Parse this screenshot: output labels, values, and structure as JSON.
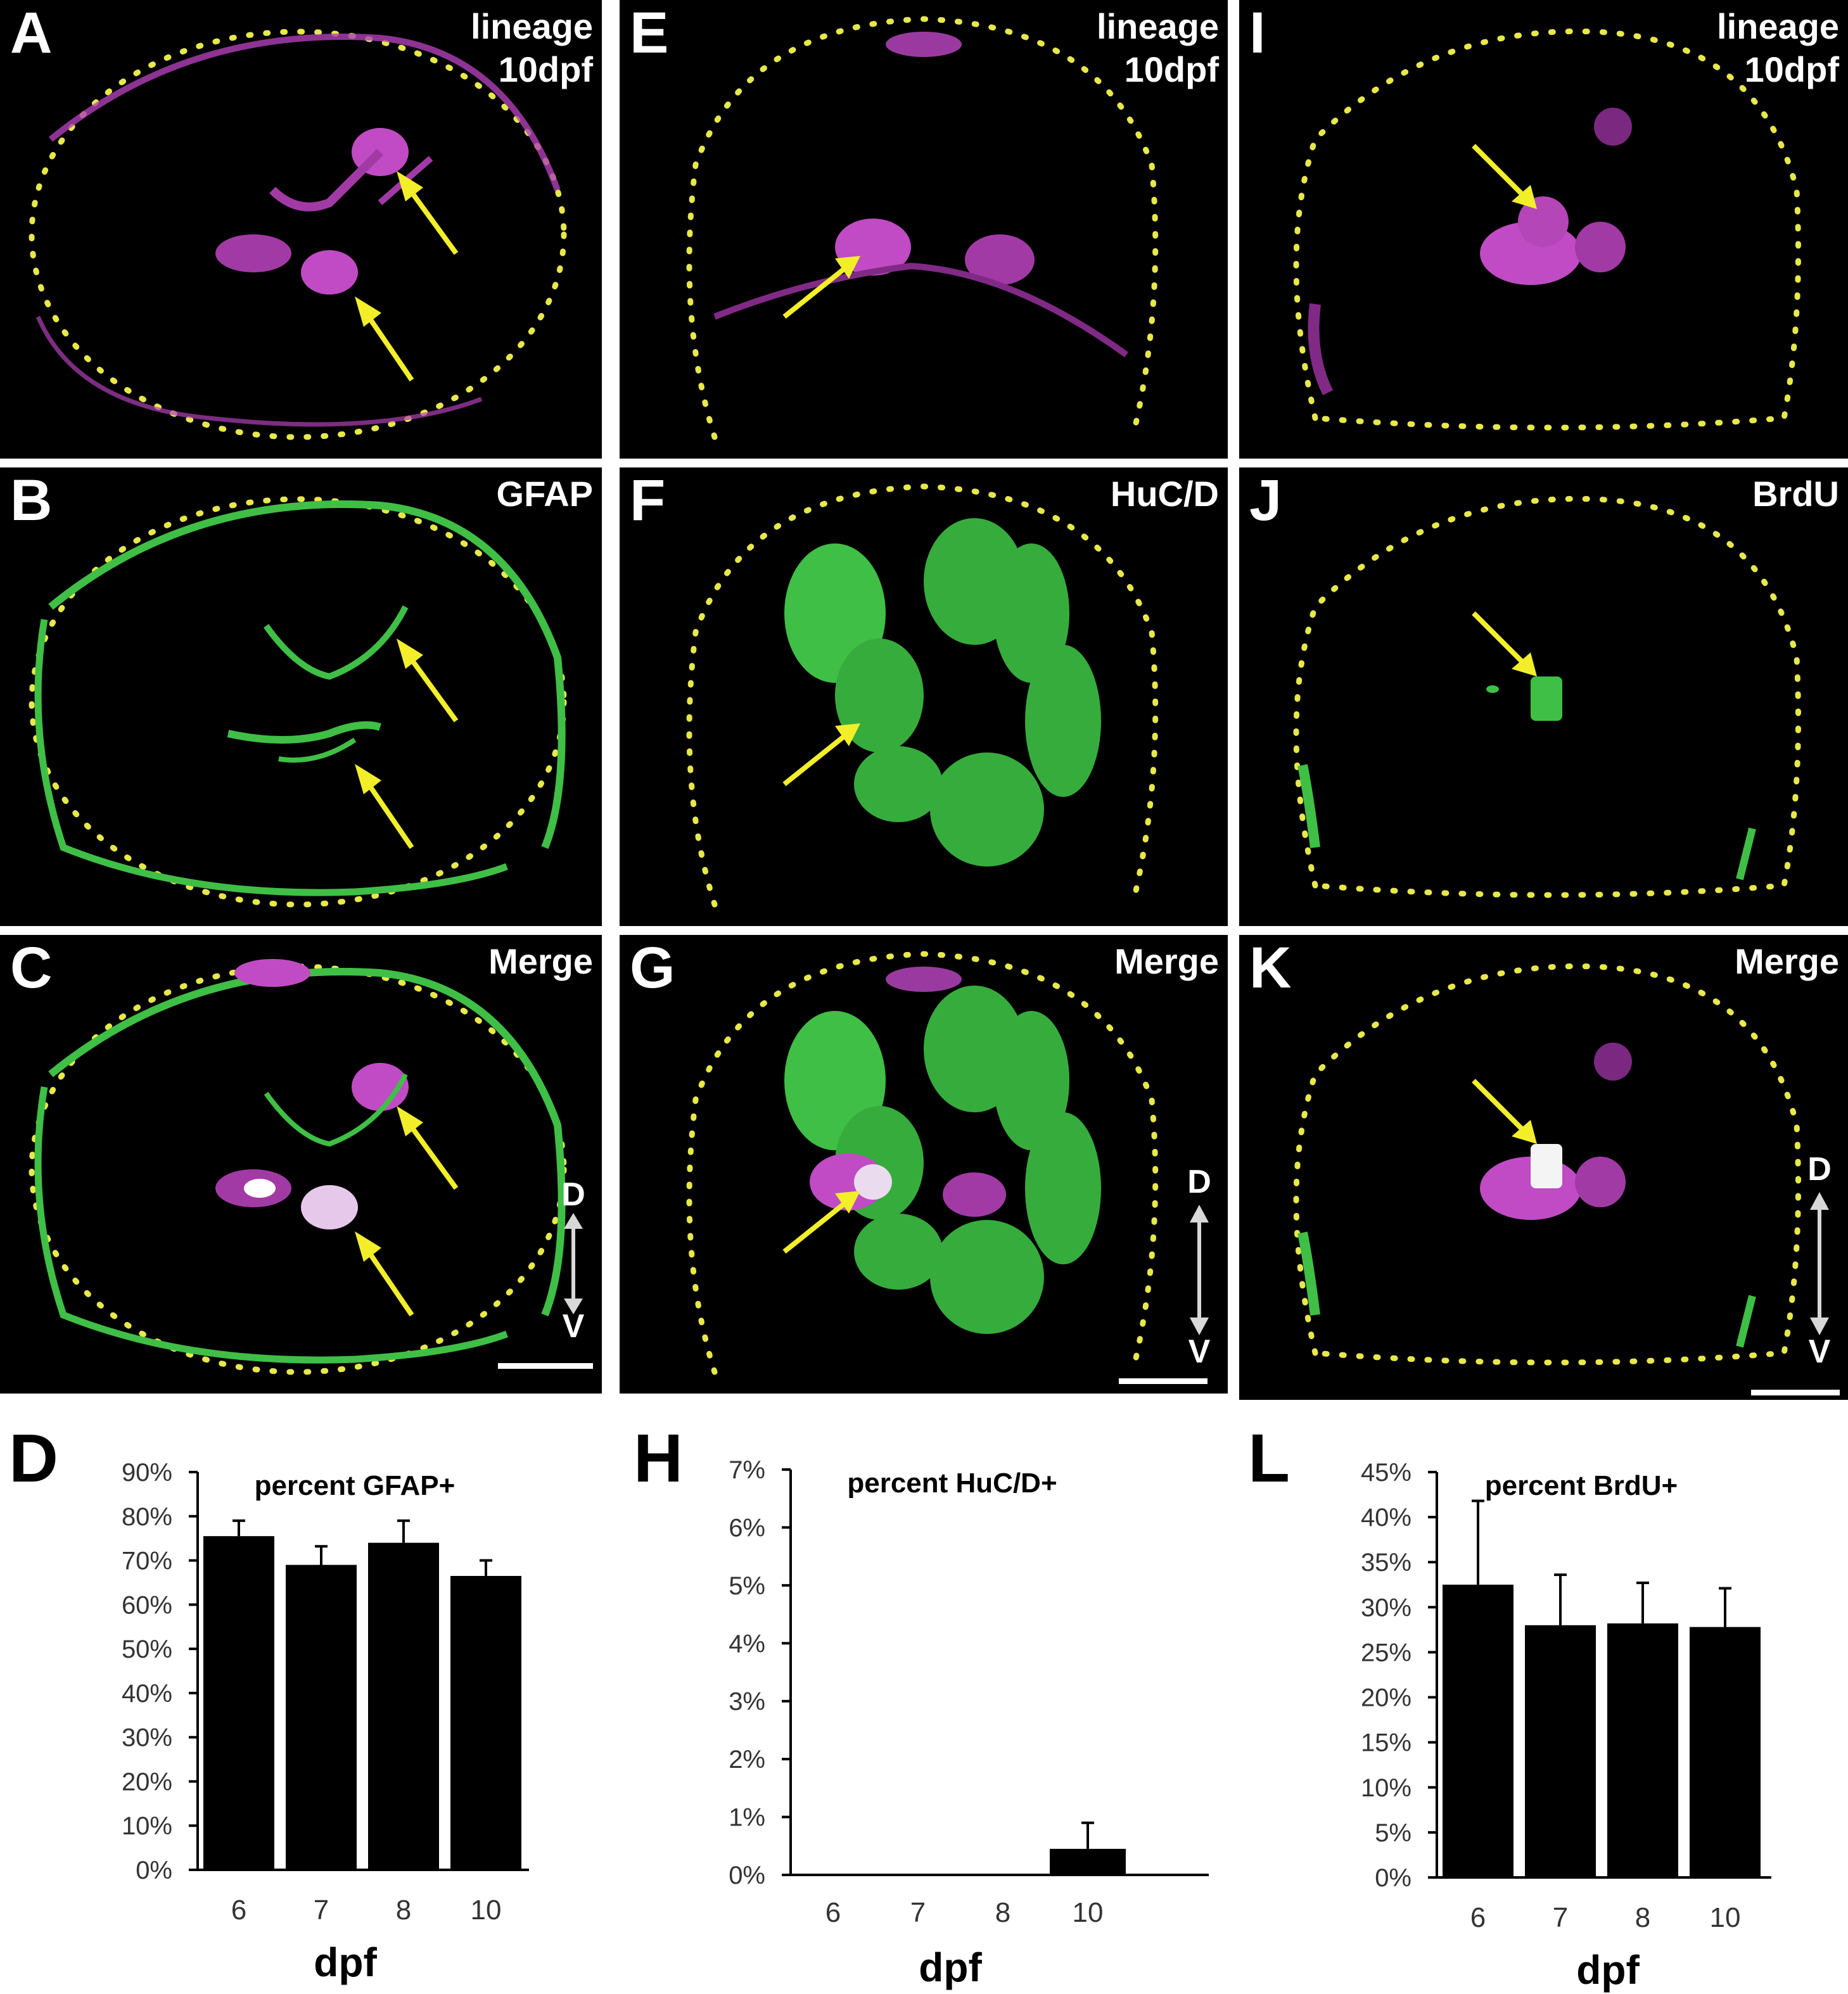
{
  "panels": [
    {
      "id": "A",
      "tag_line1": "lineage",
      "tag_line2": "10dpf",
      "stain": "magenta"
    },
    {
      "id": "B",
      "tag_line1": "GFAP",
      "tag_line2": "",
      "stain": "green"
    },
    {
      "id": "C",
      "tag_line1": "Merge",
      "tag_line2": "",
      "stain": "merge"
    },
    {
      "id": "E",
      "tag_line1": "lineage",
      "tag_line2": "10dpf",
      "stain": "magenta"
    },
    {
      "id": "F",
      "tag_line1": "HuC/D",
      "tag_line2": "",
      "stain": "green"
    },
    {
      "id": "G",
      "tag_line1": "Merge",
      "tag_line2": "",
      "stain": "merge"
    },
    {
      "id": "I",
      "tag_line1": "lineage",
      "tag_line2": "10dpf",
      "stain": "magenta"
    },
    {
      "id": "J",
      "tag_line1": "BrdU",
      "tag_line2": "",
      "stain": "green"
    },
    {
      "id": "K",
      "tag_line1": "Merge",
      "tag_line2": "",
      "stain": "merge"
    }
  ],
  "orientation": {
    "dorsal": "D",
    "ventral": "V"
  },
  "colors": {
    "magenta": "#c04bc4",
    "green": "#3fbf45",
    "outline": "#e8e84a",
    "arrow": "#f2ef2a",
    "white": "#ffffff"
  },
  "chart_data": [
    {
      "panel": "D",
      "type": "bar",
      "title": "percent GFAP+",
      "xlabel": "dpf",
      "ylabel": "",
      "categories": [
        "6",
        "7",
        "8",
        "10"
      ],
      "values": [
        75.5,
        69,
        74,
        66.5
      ],
      "error": [
        3.5,
        4.2,
        5,
        3.5
      ],
      "ylim": [
        0,
        90
      ],
      "yticks": [
        "0%",
        "10%",
        "20%",
        "30%",
        "40%",
        "50%",
        "60%",
        "70%",
        "80%",
        "90%"
      ]
    },
    {
      "panel": "H",
      "type": "bar",
      "title": "percent HuC/D+",
      "xlabel": "dpf",
      "ylabel": "",
      "categories": [
        "6",
        "7",
        "8",
        "10"
      ],
      "values": [
        0,
        0,
        0,
        0.45
      ],
      "error": [
        0,
        0,
        0,
        0.45
      ],
      "ylim": [
        0,
        7
      ],
      "yticks": [
        "0%",
        "1%",
        "2%",
        "3%",
        "4%",
        "5%",
        "6%",
        "7%"
      ]
    },
    {
      "panel": "L",
      "type": "bar",
      "title": "percent BrdU+",
      "xlabel": "dpf",
      "ylabel": "",
      "categories": [
        "6",
        "7",
        "8",
        "10"
      ],
      "values": [
        32.5,
        28,
        28.2,
        27.8
      ],
      "error": [
        9.3,
        5.6,
        4.5,
        4.3
      ],
      "ylim": [
        0,
        45
      ],
      "yticks": [
        "0%",
        "5%",
        "10%",
        "15%",
        "20%",
        "25%",
        "30%",
        "35%",
        "40%",
        "45%"
      ]
    }
  ]
}
